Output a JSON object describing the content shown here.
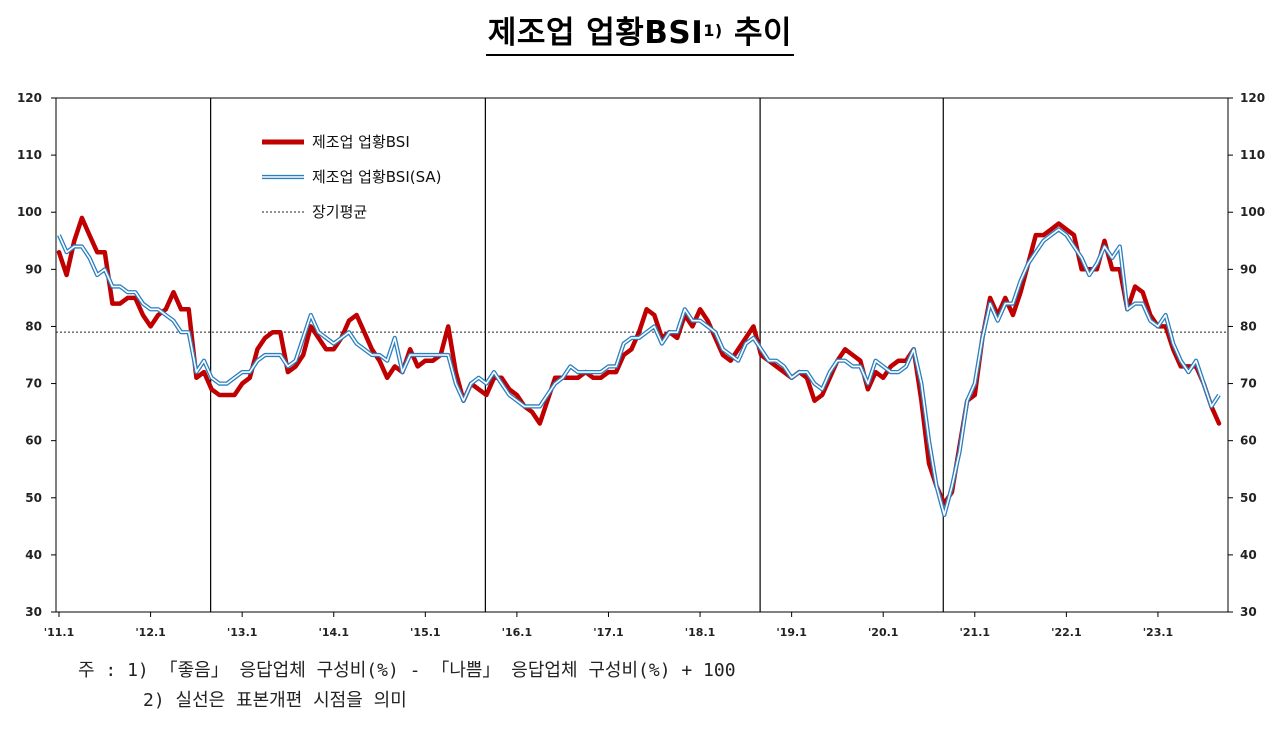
{
  "title": {
    "main": "제조업 업황BSI",
    "sup": "1)",
    "suffix": " 추이"
  },
  "notes": {
    "line1": "주 : 1) 「좋음」 응답업체 구성비(%) - 「나쁨」 응답업체 구성비(%) + 100",
    "line2": "      2) 실선은 표본개편 시점을 의미"
  },
  "chart_data": {
    "type": "line",
    "title": "제조업 업황BSI1) 추이",
    "xlabel": "",
    "ylabel": "",
    "ylim": [
      30,
      120
    ],
    "yticks": [
      30,
      40,
      50,
      60,
      70,
      80,
      90,
      100,
      110,
      120
    ],
    "grid": false,
    "legend_position": "top-left",
    "x_tick_labels": [
      "'11.1",
      "'12.1",
      "'13.1",
      "'14.1",
      "'15.1",
      "'16.1",
      "'17.1",
      "'18.1",
      "'19.1",
      "'20.1",
      "'21.1",
      "'22.1",
      "'23.1"
    ],
    "x_start": "2011-01",
    "sample_revision_lines": [
      "2012-09",
      "2015-09",
      "2018-09",
      "2020-09"
    ],
    "long_term_average": 79,
    "long_term_average_label": "장기평균",
    "colors": {
      "bsi": "#c00000",
      "bsi_sa_outer": "#2a7fc0",
      "bsi_sa_inner": "#ffffff"
    },
    "series": [
      {
        "name": "제조업 업황BSI",
        "values": [
          93,
          89,
          95,
          99,
          96,
          93,
          93,
          84,
          84,
          85,
          85,
          82,
          80,
          82,
          83,
          86,
          83,
          83,
          71,
          72,
          69,
          68,
          68,
          68,
          70,
          71,
          76,
          78,
          79,
          79,
          72,
          73,
          75,
          80,
          78,
          76,
          76,
          78,
          81,
          82,
          79,
          76,
          74,
          71,
          73,
          72,
          76,
          73,
          74,
          74,
          75,
          80,
          72,
          67,
          70,
          69,
          68,
          71,
          71,
          69,
          68,
          66,
          65,
          63,
          67,
          71,
          71,
          71,
          71,
          72,
          71,
          71,
          72,
          72,
          75,
          76,
          79,
          83,
          82,
          78,
          79,
          78,
          82,
          80,
          83,
          81,
          78,
          75,
          74,
          76,
          78,
          80,
          75,
          74,
          73,
          72,
          71,
          72,
          71,
          67,
          68,
          71,
          74,
          76,
          75,
          74,
          69,
          72,
          71,
          73,
          74,
          74,
          76,
          67,
          56,
          52,
          49,
          51,
          59,
          67,
          68,
          78,
          85,
          82,
          85,
          82,
          86,
          91,
          96,
          96,
          97,
          98,
          97,
          96,
          90,
          90,
          90,
          95,
          90,
          90,
          83,
          87,
          86,
          82,
          80,
          80,
          76,
          73,
          73,
          73,
          70,
          66,
          63
        ]
      },
      {
        "name": "제조업 업황BSI(SA)",
        "values": [
          96,
          93,
          94,
          94,
          92,
          89,
          90,
          87,
          87,
          86,
          86,
          84,
          83,
          83,
          82,
          81,
          79,
          79,
          72,
          74,
          71,
          70,
          70,
          71,
          72,
          72,
          74,
          75,
          75,
          75,
          73,
          74,
          78,
          82,
          79,
          78,
          77,
          78,
          79,
          77,
          76,
          75,
          75,
          74,
          78,
          72,
          75,
          75,
          75,
          75,
          75,
          75,
          70,
          67,
          70,
          71,
          70,
          72,
          70,
          68,
          67,
          66,
          66,
          66,
          68,
          70,
          71,
          73,
          72,
          72,
          72,
          72,
          73,
          73,
          77,
          78,
          78,
          79,
          80,
          77,
          79,
          79,
          83,
          81,
          81,
          80,
          79,
          76,
          75,
          74,
          77,
          78,
          76,
          74,
          74,
          73,
          71,
          72,
          72,
          70,
          69,
          72,
          74,
          74,
          73,
          73,
          70,
          74,
          73,
          72,
          72,
          73,
          76,
          70,
          60,
          52,
          47,
          52,
          58,
          67,
          70,
          78,
          84,
          81,
          84,
          84,
          88,
          91,
          93,
          95,
          96,
          97,
          96,
          94,
          92,
          89,
          91,
          94,
          92,
          94,
          83,
          84,
          84,
          81,
          80,
          82,
          77,
          74,
          72,
          74,
          70,
          66,
          68
        ]
      }
    ]
  },
  "legend": {
    "item1": "제조업 업황BSI",
    "item2": "제조업 업황BSI(SA)",
    "item3": "장기평균"
  }
}
